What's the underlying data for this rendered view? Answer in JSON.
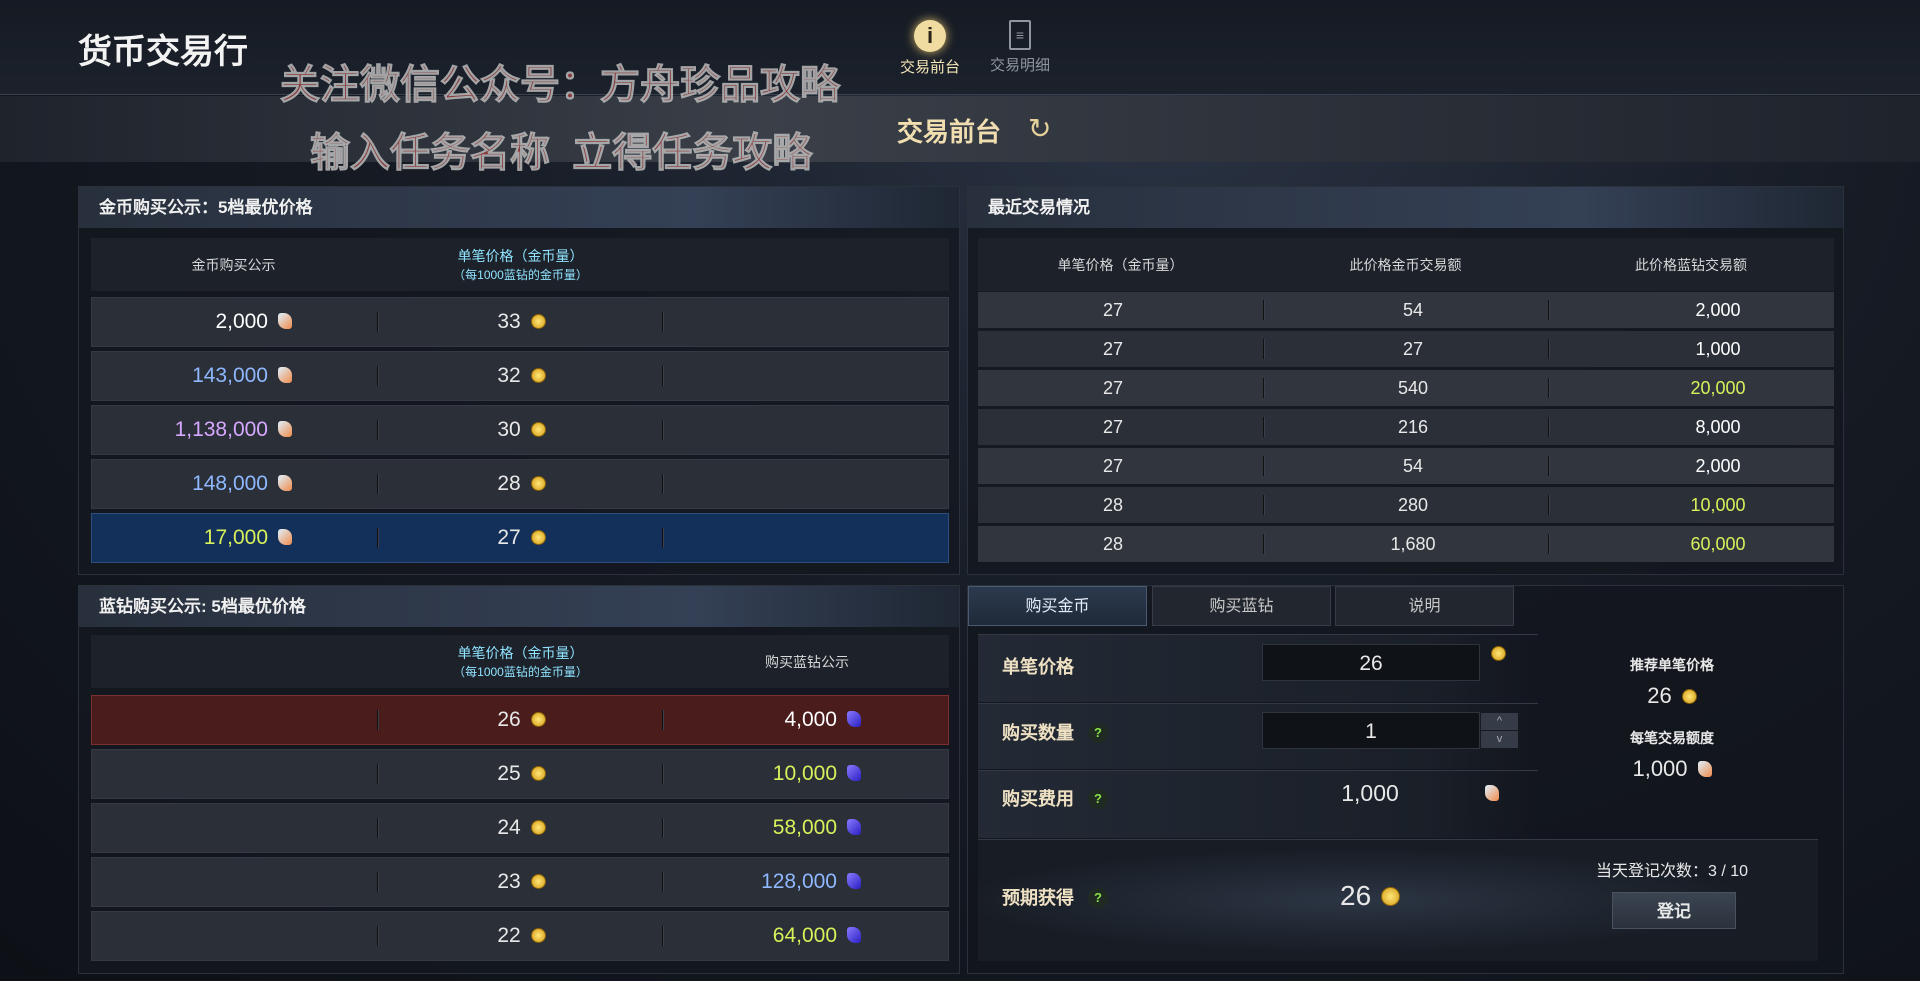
{
  "header": {
    "title": "货币交易行",
    "nav": [
      {
        "label": "交易前台",
        "icon": "info-icon",
        "active": true
      },
      {
        "label": "交易明细",
        "icon": "document-edit-icon",
        "active": false
      }
    ]
  },
  "watermark": {
    "line1": "关注微信公众号：方舟珍品攻略",
    "line2": "输入任务名称  立得任务攻略"
  },
  "subheader": {
    "title": "交易前台",
    "refresh_icon": "↻"
  },
  "gold_buy": {
    "title": "金币购买公示：5档最优价格",
    "col1": "金币购买公示",
    "col2": "单笔价格（金币量）",
    "col2_sub": "（每1000蓝钻的金币量）",
    "rows": [
      {
        "amount": "2,000",
        "price": "33",
        "color": "#ffffff"
      },
      {
        "amount": "143,000",
        "price": "32",
        "color": "#8fb8ff"
      },
      {
        "amount": "1,138,000",
        "price": "30",
        "color": "#d7a8ff"
      },
      {
        "amount": "148,000",
        "price": "28",
        "color": "#8fb8ff"
      },
      {
        "amount": "17,000",
        "price": "27",
        "color": "#d8f05a"
      }
    ]
  },
  "diamond_buy": {
    "title": "蓝钻购买公示: 5档最优价格",
    "col2": "单笔价格（金币量）",
    "col2_sub": "（每1000蓝钻的金币量）",
    "col3": "购买蓝钻公示",
    "rows": [
      {
        "price": "26",
        "amount": "4,000",
        "color": "#ffffff"
      },
      {
        "price": "25",
        "amount": "10,000",
        "color": "#d8f05a"
      },
      {
        "price": "24",
        "amount": "58,000",
        "color": "#d8f05a"
      },
      {
        "price": "23",
        "amount": "128,000",
        "color": "#8fb8ff"
      },
      {
        "price": "22",
        "amount": "64,000",
        "color": "#d8f05a"
      }
    ]
  },
  "recent": {
    "title": "最近交易情况",
    "cols": [
      "单笔价格（金币量）",
      "此价格金币交易额",
      "此价格蓝钻交易额"
    ],
    "rows": [
      [
        "27",
        "54",
        "2,000",
        "#ffffff"
      ],
      [
        "27",
        "27",
        "1,000",
        "#ffffff"
      ],
      [
        "27",
        "540",
        "20,000",
        "#d8f05a"
      ],
      [
        "27",
        "216",
        "8,000",
        "#ffffff"
      ],
      [
        "27",
        "54",
        "2,000",
        "#ffffff"
      ],
      [
        "28",
        "280",
        "10,000",
        "#d8f05a"
      ],
      [
        "28",
        "1,680",
        "60,000",
        "#d8f05a"
      ]
    ]
  },
  "tabs": [
    "购买金币",
    "购买蓝钻",
    "说明"
  ],
  "form": {
    "price_label": "单笔价格",
    "price_value": "26",
    "qty_label": "购买数量",
    "qty_value": "1",
    "cost_label": "购买费用",
    "cost_value": "1,000",
    "expect_label": "预期获得",
    "expect_value": "26",
    "help": "?",
    "rec_label": "推荐单笔价格",
    "rec_value": "26",
    "limit_label": "每笔交易额度",
    "limit_value": "1,000",
    "count_label": "当天登记次数：3 / 10",
    "register": "登记",
    "up": "^",
    "down": "v"
  }
}
